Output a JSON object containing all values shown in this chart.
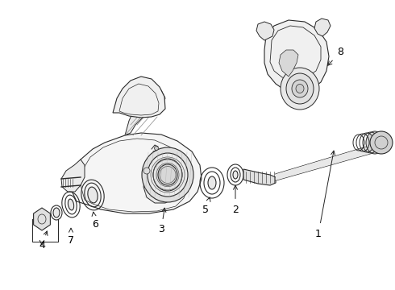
{
  "background_color": "#ffffff",
  "fig_width": 4.9,
  "fig_height": 3.6,
  "dpi": 100,
  "line_color": "#2a2a2a",
  "label_color": "#000000",
  "label_fontsize": 9
}
